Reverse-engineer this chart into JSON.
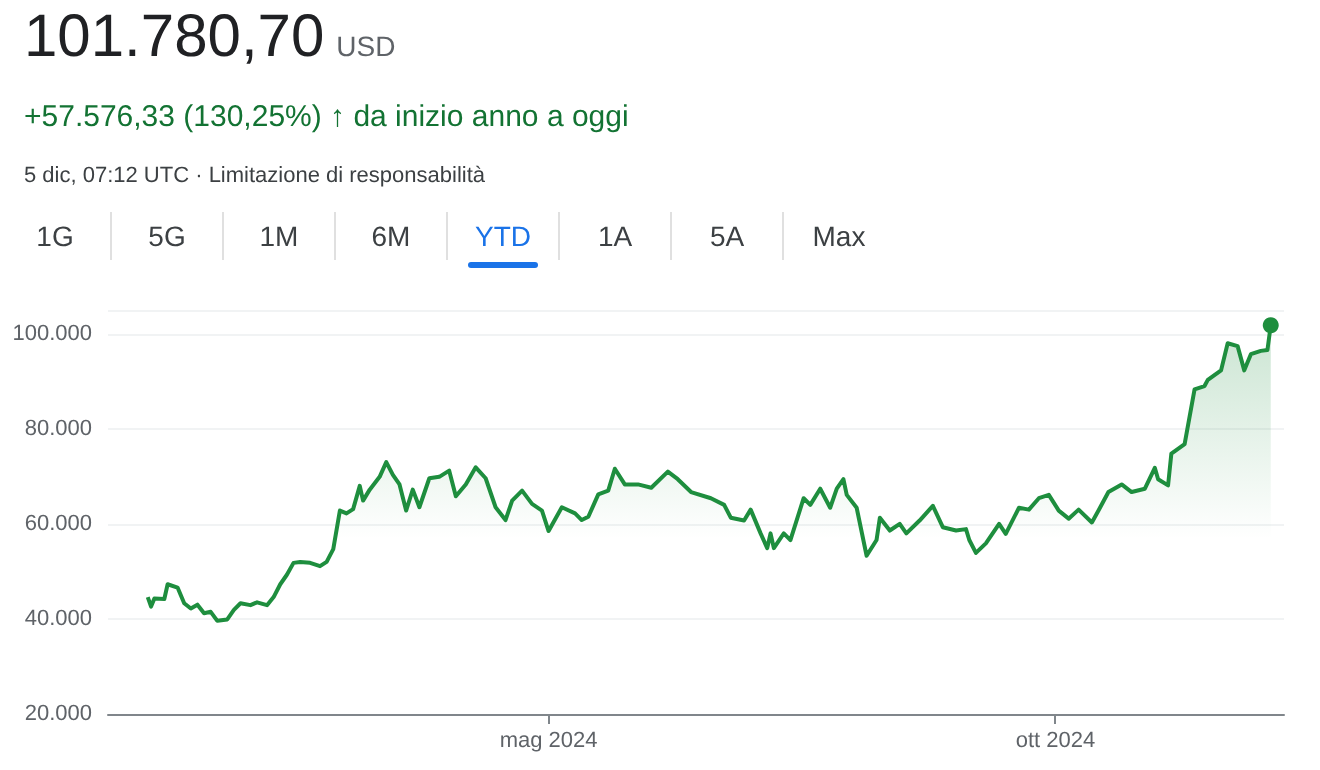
{
  "chart_data": {
    "type": "area",
    "title": "101.780,70",
    "annotations": [
      "USD",
      "+57.576,33 (130,25%) ↑ da inizio anno a oggi",
      "5 dic, 07:12 UTC · Limitazione di responsabilità",
      "1G",
      "5G",
      "1M",
      "6M",
      "YTD",
      "1A",
      "5A",
      "Max"
    ],
    "x": [
      "2024-01-01",
      "2024-01-02",
      "2024-01-03",
      "2024-01-06",
      "2024-01-07",
      "2024-01-10",
      "2024-01-12",
      "2024-01-14",
      "2024-01-16",
      "2024-01-18",
      "2024-01-20",
      "2024-01-22",
      "2024-01-25",
      "2024-01-27",
      "2024-01-29",
      "2024-02-01",
      "2024-02-03",
      "2024-02-06",
      "2024-02-08",
      "2024-02-10",
      "2024-02-12",
      "2024-02-14",
      "2024-02-16",
      "2024-02-19",
      "2024-02-22",
      "2024-02-24",
      "2024-02-26",
      "2024-02-28",
      "2024-03-01",
      "2024-03-03",
      "2024-03-05",
      "2024-03-06",
      "2024-03-08",
      "2024-03-11",
      "2024-03-13",
      "2024-03-15",
      "2024-03-17",
      "2024-03-19",
      "2024-03-21",
      "2024-03-23",
      "2024-03-26",
      "2024-03-29",
      "2024-04-01",
      "2024-04-03",
      "2024-04-06",
      "2024-04-09",
      "2024-04-12",
      "2024-04-15",
      "2024-04-18",
      "2024-04-20",
      "2024-04-23",
      "2024-04-26",
      "2024-04-29",
      "2024-05-01",
      "2024-05-05",
      "2024-05-09",
      "2024-05-11",
      "2024-05-13",
      "2024-05-16",
      "2024-05-19",
      "2024-05-21",
      "2024-05-24",
      "2024-05-28",
      "2024-06-01",
      "2024-06-06",
      "2024-06-09",
      "2024-06-13",
      "2024-06-19",
      "2024-06-23",
      "2024-06-25",
      "2024-06-29",
      "2024-07-01",
      "2024-07-04",
      "2024-07-06",
      "2024-07-07",
      "2024-07-08",
      "2024-07-11",
      "2024-07-13",
      "2024-07-17",
      "2024-07-19",
      "2024-07-22",
      "2024-07-25",
      "2024-07-27",
      "2024-07-29",
      "2024-07-30",
      "2024-08-02",
      "2024-08-05",
      "2024-08-08",
      "2024-08-09",
      "2024-08-12",
      "2024-08-15",
      "2024-08-17",
      "2024-08-21",
      "2024-08-25",
      "2024-08-28",
      "2024-09-01",
      "2024-09-04",
      "2024-09-05",
      "2024-09-07",
      "2024-09-10",
      "2024-09-14",
      "2024-09-16",
      "2024-09-20",
      "2024-09-23",
      "2024-09-26",
      "2024-09-29",
      "2024-10-02",
      "2024-10-05",
      "2024-10-08",
      "2024-10-12",
      "2024-10-14",
      "2024-10-17",
      "2024-10-21",
      "2024-10-24",
      "2024-10-28",
      "2024-10-31",
      "2024-11-01",
      "2024-11-04",
      "2024-11-05",
      "2024-11-09",
      "2024-11-12",
      "2024-11-15",
      "2024-11-16",
      "2024-11-20",
      "2024-11-22",
      "2024-11-25",
      "2024-11-27",
      "2024-11-29",
      "2024-12-02",
      "2024-12-04",
      "2024-12-05"
    ],
    "series": [
      {
        "color": "#1e8e3e",
        "values": [
          44600,
          42600,
          44300,
          44200,
          47300,
          46600,
          43300,
          42200,
          43000,
          41200,
          41500,
          39600,
          39900,
          41900,
          43300,
          42900,
          43500,
          42900,
          44600,
          47300,
          49300,
          51800,
          52000,
          51800,
          51100,
          52000,
          54700,
          62800,
          62200,
          63100,
          68000,
          64900,
          67200,
          69900,
          73000,
          70300,
          68300,
          62800,
          67200,
          63500,
          69600,
          69900,
          71200,
          65800,
          68300,
          71900,
          69600,
          63500,
          60800,
          64900,
          67000,
          64200,
          62800,
          58500,
          63500,
          62200,
          60800,
          61500,
          66200,
          67000,
          71600,
          68300,
          68300,
          67600,
          71000,
          69400,
          66700,
          65400,
          64000,
          61300,
          60700,
          63000,
          58000,
          54900,
          58000,
          54900,
          58000,
          56600,
          65400,
          64000,
          67400,
          63400,
          67400,
          69400,
          66100,
          63400,
          53300,
          56600,
          61300,
          58600,
          60000,
          58000,
          60700,
          63800,
          59300,
          58600,
          58900,
          56600,
          53900,
          55900,
          60000,
          57900,
          63400,
          63000,
          65400,
          66100,
          62800,
          61100,
          63000,
          60300,
          62800,
          66700,
          68300,
          66700,
          67400,
          71800,
          69400,
          68100,
          74800,
          76800,
          88300,
          89000,
          90300,
          92300,
          98000,
          97400,
          92300,
          95700,
          96400,
          96600,
          101800
        ]
      }
    ],
    "xlim": [
      "2023-12-20",
      "2024-12-09"
    ],
    "xticks": [
      {
        "value": "2024-05-01",
        "label": "mag 2024"
      },
      {
        "value": "2024-10-01",
        "label": "ott 2024"
      }
    ],
    "ylim": [
      20000,
      105000
    ],
    "yticks": [
      {
        "value": 20000,
        "label": "20.000"
      },
      {
        "value": 40000,
        "label": "40.000"
      },
      {
        "value": 60000,
        "label": "60.000"
      },
      {
        "value": 80000,
        "label": "80.000"
      },
      {
        "value": 100000,
        "label": "100.000"
      }
    ],
    "grid": "y"
  }
}
